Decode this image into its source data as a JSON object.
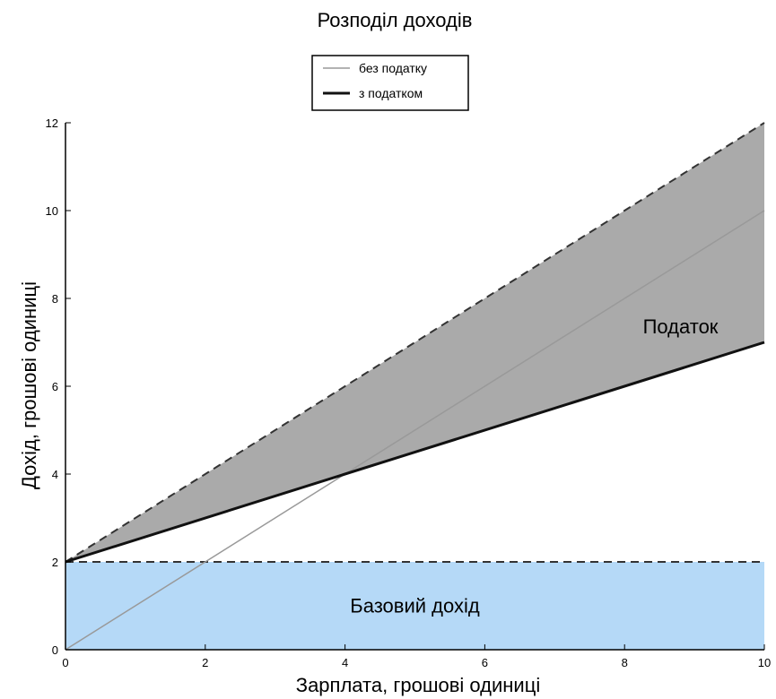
{
  "chart_data": {
    "type": "line",
    "title": "Розподіл доходів",
    "xlabel": "Зарплата, грошові одиниці",
    "ylabel": "Дохід, грошові одиниці",
    "xlim": [
      0,
      10
    ],
    "ylim": [
      0,
      12
    ],
    "x_ticks": [
      0,
      2,
      4,
      6,
      8,
      10
    ],
    "y_ticks": [
      0,
      2,
      4,
      6,
      8,
      10,
      12
    ],
    "x_tick_labels": [
      "0",
      "2",
      "4",
      "6",
      "8",
      "10"
    ],
    "y_tick_labels": [
      "0",
      "2",
      "4",
      "6",
      "8",
      "10",
      "12"
    ],
    "grid": false,
    "legend_position": "top-center",
    "series": [
      {
        "name": "без податку",
        "x": [
          0,
          10
        ],
        "y": [
          0,
          10
        ],
        "color": "#999999",
        "style": "solid"
      },
      {
        "name": "з податком",
        "x": [
          0,
          10
        ],
        "y": [
          2,
          7
        ],
        "color": "#111111",
        "style": "solid"
      }
    ],
    "reference_lines": [
      {
        "x": [
          0,
          10
        ],
        "y": [
          2,
          12
        ],
        "color": "#333333",
        "style": "dashed"
      },
      {
        "x": [
          0,
          10
        ],
        "y": [
          2,
          2
        ],
        "color": "#333333",
        "style": "dashed"
      }
    ],
    "fills": [
      {
        "label": "Податок",
        "x": [
          0,
          10
        ],
        "y_lower": [
          2,
          7
        ],
        "y_upper": [
          2,
          12
        ],
        "color": "#aaaaaa"
      },
      {
        "label": "Базовий дохід",
        "x": [
          0,
          10
        ],
        "y_lower": [
          0,
          0
        ],
        "y_upper": [
          2,
          2
        ],
        "color": "#b5d9f7"
      }
    ],
    "annotations": [
      {
        "text": "Податок",
        "x": 8.8,
        "y": 7.2
      },
      {
        "text": "Базовий дохід",
        "x": 5.0,
        "y": 0.85
      }
    ]
  }
}
